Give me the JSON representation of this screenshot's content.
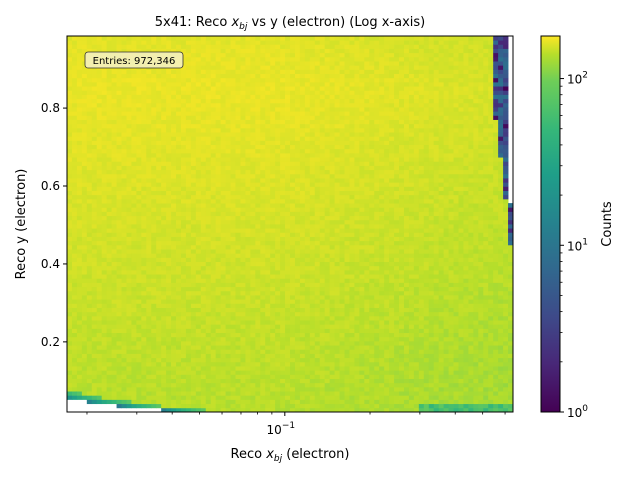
{
  "chart_data": {
    "type": "heatmap",
    "title_parts": [
      "5x41: Reco ",
      "x",
      "bj",
      " vs y (electron) (Log x-axis)"
    ],
    "xlabel_parts": [
      "Reco ",
      "x",
      "bj",
      " (electron)"
    ],
    "ylabel": "Reco y (electron)",
    "x_scale": "log",
    "xlim": [
      0.017,
      0.64
    ],
    "ylim": [
      0.02,
      0.985
    ],
    "x_ticks": [
      {
        "value": 0.1,
        "base": "10",
        "exp": "−1"
      }
    ],
    "y_ticks": [
      0.2,
      0.4,
      0.6,
      0.8
    ],
    "annotation": "Entries: 972,346",
    "colorbar": {
      "label": "Counts",
      "scale": "log",
      "range": [
        1,
        180
      ],
      "colormap": "viridis",
      "ticks": [
        {
          "value": 1,
          "base": "10",
          "exp": "0"
        },
        {
          "value": 10,
          "base": "10",
          "exp": "1"
        },
        {
          "value": 100,
          "base": "10",
          "exp": "2"
        }
      ]
    },
    "description_of_data": {
      "typical_count_range": [
        80,
        180
      ],
      "low_count_edge_x": 0.6,
      "empty_region_above_x": 0.62
    }
  }
}
